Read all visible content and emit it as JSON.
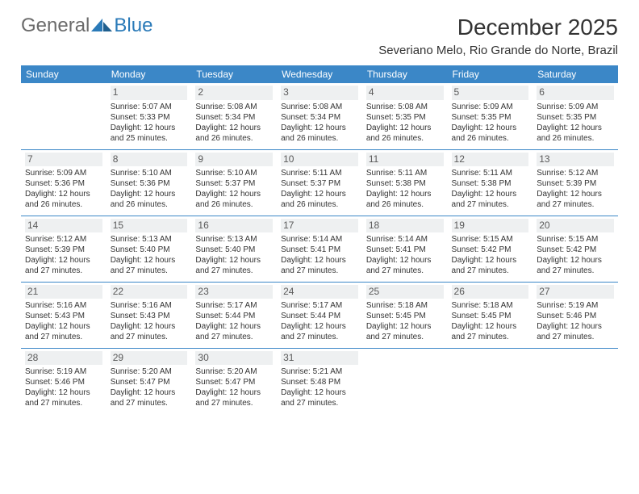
{
  "brand": {
    "part1": "General",
    "part2": "Blue"
  },
  "title": "December 2025",
  "location": "Severiano Melo, Rio Grande do Norte, Brazil",
  "dayHeaders": [
    "Sunday",
    "Monday",
    "Tuesday",
    "Wednesday",
    "Thursday",
    "Friday",
    "Saturday"
  ],
  "colors": {
    "headerBg": "#3b87c7",
    "rowBorder": "#3b87c7",
    "dayNumBg": "#eef0f1",
    "text": "#333333",
    "logoGray": "#6b6b6b",
    "logoBlue": "#2a7ab8"
  },
  "cells": [
    [
      {
        "num": "",
        "lines": []
      },
      {
        "num": "1",
        "lines": [
          "Sunrise: 5:07 AM",
          "Sunset: 5:33 PM",
          "Daylight: 12 hours",
          "and 25 minutes."
        ]
      },
      {
        "num": "2",
        "lines": [
          "Sunrise: 5:08 AM",
          "Sunset: 5:34 PM",
          "Daylight: 12 hours",
          "and 26 minutes."
        ]
      },
      {
        "num": "3",
        "lines": [
          "Sunrise: 5:08 AM",
          "Sunset: 5:34 PM",
          "Daylight: 12 hours",
          "and 26 minutes."
        ]
      },
      {
        "num": "4",
        "lines": [
          "Sunrise: 5:08 AM",
          "Sunset: 5:35 PM",
          "Daylight: 12 hours",
          "and 26 minutes."
        ]
      },
      {
        "num": "5",
        "lines": [
          "Sunrise: 5:09 AM",
          "Sunset: 5:35 PM",
          "Daylight: 12 hours",
          "and 26 minutes."
        ]
      },
      {
        "num": "6",
        "lines": [
          "Sunrise: 5:09 AM",
          "Sunset: 5:35 PM",
          "Daylight: 12 hours",
          "and 26 minutes."
        ]
      }
    ],
    [
      {
        "num": "7",
        "lines": [
          "Sunrise: 5:09 AM",
          "Sunset: 5:36 PM",
          "Daylight: 12 hours",
          "and 26 minutes."
        ]
      },
      {
        "num": "8",
        "lines": [
          "Sunrise: 5:10 AM",
          "Sunset: 5:36 PM",
          "Daylight: 12 hours",
          "and 26 minutes."
        ]
      },
      {
        "num": "9",
        "lines": [
          "Sunrise: 5:10 AM",
          "Sunset: 5:37 PM",
          "Daylight: 12 hours",
          "and 26 minutes."
        ]
      },
      {
        "num": "10",
        "lines": [
          "Sunrise: 5:11 AM",
          "Sunset: 5:37 PM",
          "Daylight: 12 hours",
          "and 26 minutes."
        ]
      },
      {
        "num": "11",
        "lines": [
          "Sunrise: 5:11 AM",
          "Sunset: 5:38 PM",
          "Daylight: 12 hours",
          "and 26 minutes."
        ]
      },
      {
        "num": "12",
        "lines": [
          "Sunrise: 5:11 AM",
          "Sunset: 5:38 PM",
          "Daylight: 12 hours",
          "and 27 minutes."
        ]
      },
      {
        "num": "13",
        "lines": [
          "Sunrise: 5:12 AM",
          "Sunset: 5:39 PM",
          "Daylight: 12 hours",
          "and 27 minutes."
        ]
      }
    ],
    [
      {
        "num": "14",
        "lines": [
          "Sunrise: 5:12 AM",
          "Sunset: 5:39 PM",
          "Daylight: 12 hours",
          "and 27 minutes."
        ]
      },
      {
        "num": "15",
        "lines": [
          "Sunrise: 5:13 AM",
          "Sunset: 5:40 PM",
          "Daylight: 12 hours",
          "and 27 minutes."
        ]
      },
      {
        "num": "16",
        "lines": [
          "Sunrise: 5:13 AM",
          "Sunset: 5:40 PM",
          "Daylight: 12 hours",
          "and 27 minutes."
        ]
      },
      {
        "num": "17",
        "lines": [
          "Sunrise: 5:14 AM",
          "Sunset: 5:41 PM",
          "Daylight: 12 hours",
          "and 27 minutes."
        ]
      },
      {
        "num": "18",
        "lines": [
          "Sunrise: 5:14 AM",
          "Sunset: 5:41 PM",
          "Daylight: 12 hours",
          "and 27 minutes."
        ]
      },
      {
        "num": "19",
        "lines": [
          "Sunrise: 5:15 AM",
          "Sunset: 5:42 PM",
          "Daylight: 12 hours",
          "and 27 minutes."
        ]
      },
      {
        "num": "20",
        "lines": [
          "Sunrise: 5:15 AM",
          "Sunset: 5:42 PM",
          "Daylight: 12 hours",
          "and 27 minutes."
        ]
      }
    ],
    [
      {
        "num": "21",
        "lines": [
          "Sunrise: 5:16 AM",
          "Sunset: 5:43 PM",
          "Daylight: 12 hours",
          "and 27 minutes."
        ]
      },
      {
        "num": "22",
        "lines": [
          "Sunrise: 5:16 AM",
          "Sunset: 5:43 PM",
          "Daylight: 12 hours",
          "and 27 minutes."
        ]
      },
      {
        "num": "23",
        "lines": [
          "Sunrise: 5:17 AM",
          "Sunset: 5:44 PM",
          "Daylight: 12 hours",
          "and 27 minutes."
        ]
      },
      {
        "num": "24",
        "lines": [
          "Sunrise: 5:17 AM",
          "Sunset: 5:44 PM",
          "Daylight: 12 hours",
          "and 27 minutes."
        ]
      },
      {
        "num": "25",
        "lines": [
          "Sunrise: 5:18 AM",
          "Sunset: 5:45 PM",
          "Daylight: 12 hours",
          "and 27 minutes."
        ]
      },
      {
        "num": "26",
        "lines": [
          "Sunrise: 5:18 AM",
          "Sunset: 5:45 PM",
          "Daylight: 12 hours",
          "and 27 minutes."
        ]
      },
      {
        "num": "27",
        "lines": [
          "Sunrise: 5:19 AM",
          "Sunset: 5:46 PM",
          "Daylight: 12 hours",
          "and 27 minutes."
        ]
      }
    ],
    [
      {
        "num": "28",
        "lines": [
          "Sunrise: 5:19 AM",
          "Sunset: 5:46 PM",
          "Daylight: 12 hours",
          "and 27 minutes."
        ]
      },
      {
        "num": "29",
        "lines": [
          "Sunrise: 5:20 AM",
          "Sunset: 5:47 PM",
          "Daylight: 12 hours",
          "and 27 minutes."
        ]
      },
      {
        "num": "30",
        "lines": [
          "Sunrise: 5:20 AM",
          "Sunset: 5:47 PM",
          "Daylight: 12 hours",
          "and 27 minutes."
        ]
      },
      {
        "num": "31",
        "lines": [
          "Sunrise: 5:21 AM",
          "Sunset: 5:48 PM",
          "Daylight: 12 hours",
          "and 27 minutes."
        ]
      },
      {
        "num": "",
        "lines": []
      },
      {
        "num": "",
        "lines": []
      },
      {
        "num": "",
        "lines": []
      }
    ]
  ]
}
